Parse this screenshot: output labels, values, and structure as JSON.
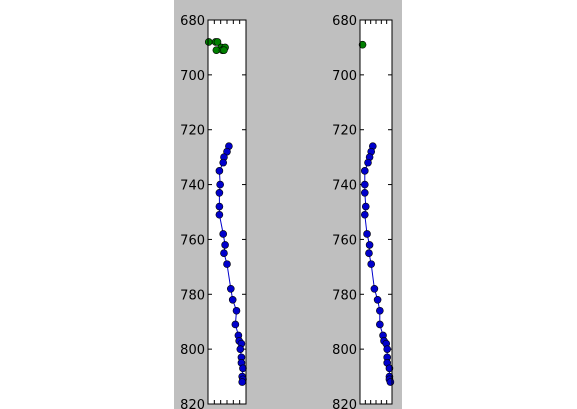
{
  "colors": {
    "figure_background": "#bfbfbf",
    "axes_background": "#ffffff",
    "blue_series": "#0000cc",
    "green_series": "#007f00"
  },
  "chart_data": [
    {
      "type": "scatter",
      "ylim": [
        680,
        820
      ],
      "y_inverted": true,
      "y_ticks": [
        680,
        700,
        720,
        740,
        760,
        780,
        800,
        820
      ],
      "grid": false,
      "series": [
        {
          "color": "blue",
          "connected": true,
          "points": [
            {
              "x": 0.55,
              "y": 726
            },
            {
              "x": 0.5,
              "y": 728
            },
            {
              "x": 0.42,
              "y": 730
            },
            {
              "x": 0.4,
              "y": 732
            },
            {
              "x": 0.3,
              "y": 735
            },
            {
              "x": 0.32,
              "y": 740
            },
            {
              "x": 0.3,
              "y": 743
            },
            {
              "x": 0.3,
              "y": 748
            },
            {
              "x": 0.3,
              "y": 751
            },
            {
              "x": 0.4,
              "y": 758
            },
            {
              "x": 0.45,
              "y": 762
            },
            {
              "x": 0.42,
              "y": 765
            },
            {
              "x": 0.5,
              "y": 769
            },
            {
              "x": 0.6,
              "y": 778
            },
            {
              "x": 0.65,
              "y": 782
            },
            {
              "x": 0.75,
              "y": 786
            },
            {
              "x": 0.72,
              "y": 791
            },
            {
              "x": 0.8,
              "y": 795
            },
            {
              "x": 0.82,
              "y": 797
            },
            {
              "x": 0.88,
              "y": 798
            },
            {
              "x": 0.85,
              "y": 800
            },
            {
              "x": 0.88,
              "y": 803
            },
            {
              "x": 0.88,
              "y": 805
            },
            {
              "x": 0.92,
              "y": 807
            },
            {
              "x": 0.9,
              "y": 810
            },
            {
              "x": 0.92,
              "y": 811
            },
            {
              "x": 0.9,
              "y": 812
            }
          ]
        },
        {
          "color": "green",
          "connected": false,
          "points": [
            {
              "x": 0.02,
              "y": 688
            },
            {
              "x": 0.2,
              "y": 688
            },
            {
              "x": 0.25,
              "y": 688
            },
            {
              "x": 0.35,
              "y": 690
            },
            {
              "x": 0.45,
              "y": 690
            },
            {
              "x": 0.22,
              "y": 691
            },
            {
              "x": 0.38,
              "y": 691
            },
            {
              "x": 0.42,
              "y": 691
            }
          ]
        }
      ]
    },
    {
      "type": "scatter",
      "ylim": [
        680,
        820
      ],
      "y_inverted": true,
      "y_ticks": [
        680,
        700,
        720,
        740,
        760,
        780,
        800,
        820
      ],
      "grid": false,
      "series": [
        {
          "color": "blue",
          "connected": true,
          "points": [
            {
              "x": 0.4,
              "y": 726
            },
            {
              "x": 0.35,
              "y": 728
            },
            {
              "x": 0.3,
              "y": 730
            },
            {
              "x": 0.25,
              "y": 732
            },
            {
              "x": 0.15,
              "y": 735
            },
            {
              "x": 0.15,
              "y": 740
            },
            {
              "x": 0.15,
              "y": 743
            },
            {
              "x": 0.18,
              "y": 748
            },
            {
              "x": 0.15,
              "y": 751
            },
            {
              "x": 0.22,
              "y": 758
            },
            {
              "x": 0.3,
              "y": 762
            },
            {
              "x": 0.28,
              "y": 765
            },
            {
              "x": 0.35,
              "y": 769
            },
            {
              "x": 0.45,
              "y": 778
            },
            {
              "x": 0.55,
              "y": 782
            },
            {
              "x": 0.62,
              "y": 786
            },
            {
              "x": 0.62,
              "y": 791
            },
            {
              "x": 0.72,
              "y": 795
            },
            {
              "x": 0.75,
              "y": 797
            },
            {
              "x": 0.82,
              "y": 798
            },
            {
              "x": 0.85,
              "y": 800
            },
            {
              "x": 0.85,
              "y": 803
            },
            {
              "x": 0.85,
              "y": 805
            },
            {
              "x": 0.92,
              "y": 807
            },
            {
              "x": 0.92,
              "y": 810
            },
            {
              "x": 0.92,
              "y": 811
            },
            {
              "x": 0.95,
              "y": 812
            }
          ]
        },
        {
          "color": "green",
          "connected": false,
          "points": [
            {
              "x": 0.08,
              "y": 689
            }
          ]
        }
      ]
    }
  ]
}
